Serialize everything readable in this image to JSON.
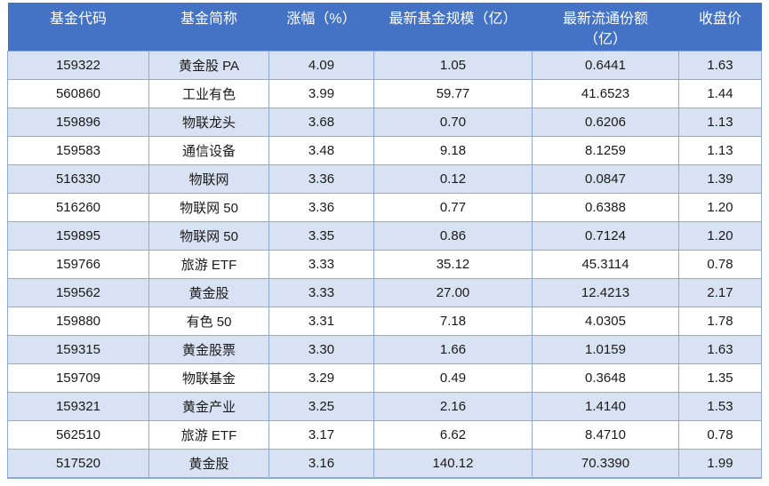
{
  "colors": {
    "header_bg": "#4472C4",
    "header_text": "#FFFFFF",
    "row_stripe": "#D9E2F3",
    "row_white": "#FFFFFF",
    "border": "#8EAADB",
    "cell_text": "#1A1A1A"
  },
  "chart_data": {
    "type": "table",
    "title": "",
    "columns": [
      {
        "id": "code",
        "lines": [
          "基金代码"
        ]
      },
      {
        "id": "name",
        "lines": [
          "基金简称"
        ]
      },
      {
        "id": "change-pct",
        "lines": [
          "涨幅（%）"
        ]
      },
      {
        "id": "fund-scale",
        "lines": [
          "最新基金规模（亿）"
        ]
      },
      {
        "id": "float-shares",
        "lines": [
          "最新流通份额",
          "（亿）"
        ]
      },
      {
        "id": "close-price",
        "lines": [
          "收盘价"
        ]
      }
    ],
    "rows": [
      [
        "159322",
        "黄金股 PA",
        "4.09",
        "1.05",
        "0.6441",
        "1.63"
      ],
      [
        "560860",
        "工业有色",
        "3.99",
        "59.77",
        "41.6523",
        "1.44"
      ],
      [
        "159896",
        "物联龙头",
        "3.68",
        "0.70",
        "0.6206",
        "1.13"
      ],
      [
        "159583",
        "通信设备",
        "3.48",
        "9.18",
        "8.1259",
        "1.13"
      ],
      [
        "516330",
        "物联网",
        "3.36",
        "0.12",
        "0.0847",
        "1.39"
      ],
      [
        "516260",
        "物联网 50",
        "3.36",
        "0.77",
        "0.6388",
        "1.20"
      ],
      [
        "159895",
        "物联网 50",
        "3.35",
        "0.86",
        "0.7124",
        "1.20"
      ],
      [
        "159766",
        "旅游 ETF",
        "3.33",
        "35.12",
        "45.3114",
        "0.78"
      ],
      [
        "159562",
        "黄金股",
        "3.33",
        "27.00",
        "12.4213",
        "2.17"
      ],
      [
        "159880",
        "有色 50",
        "3.31",
        "7.18",
        "4.0305",
        "1.78"
      ],
      [
        "159315",
        "黄金股票",
        "3.30",
        "1.66",
        "1.0159",
        "1.63"
      ],
      [
        "159709",
        "物联基金",
        "3.29",
        "0.49",
        "0.3648",
        "1.35"
      ],
      [
        "159321",
        "黄金产业",
        "3.25",
        "2.16",
        "1.4140",
        "1.53"
      ],
      [
        "562510",
        "旅游 ETF",
        "3.17",
        "6.62",
        "8.4710",
        "0.78"
      ],
      [
        "517520",
        "黄金股",
        "3.16",
        "140.12",
        "70.3390",
        "1.99"
      ]
    ]
  }
}
